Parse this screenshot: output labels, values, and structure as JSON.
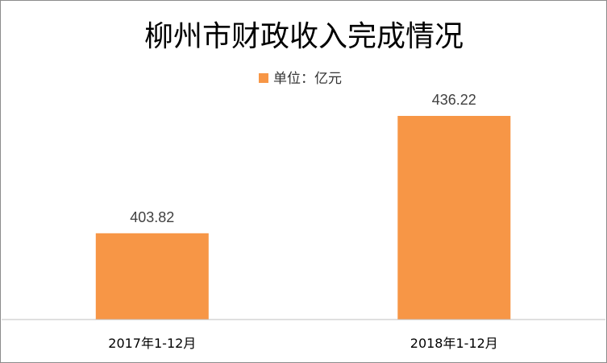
{
  "chart_data": {
    "type": "bar",
    "title": "柳州市财政收入完成情况",
    "categories": [
      "2017年1-12月",
      "2018年1-12月"
    ],
    "series": [
      {
        "name": "单位：亿元",
        "values": [
          403.82,
          436.22
        ],
        "color": "#f79646"
      }
    ],
    "data_labels": [
      "403.82",
      "436.22"
    ],
    "xlabel": "",
    "ylabel": "",
    "ylim": [
      380,
      440
    ],
    "grid": false,
    "legend_position": "top-center"
  }
}
